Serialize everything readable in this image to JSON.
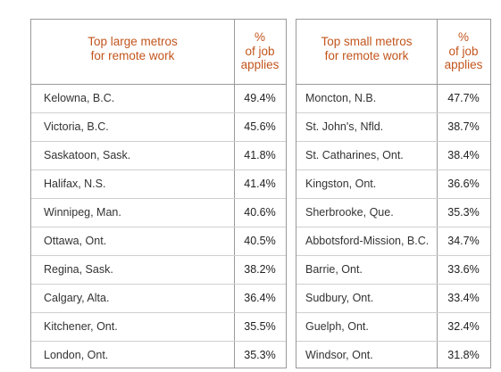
{
  "large": {
    "title": "Top large metros\nfor remote work",
    "pct_header": "%\nof job\napplies",
    "rows": [
      {
        "city": "Kelowna, B.C.",
        "value": "49.4%"
      },
      {
        "city": "Victoria, B.C.",
        "value": "45.6%"
      },
      {
        "city": "Saskatoon, Sask.",
        "value": "41.8%"
      },
      {
        "city": "Halifax, N.S.",
        "value": "41.4%"
      },
      {
        "city": "Winnipeg, Man.",
        "value": "40.6%"
      },
      {
        "city": "Ottawa, Ont.",
        "value": "40.5%"
      },
      {
        "city": "Regina, Sask.",
        "value": "38.2%"
      },
      {
        "city": "Calgary, Alta.",
        "value": "36.4%"
      },
      {
        "city": "Kitchener, Ont.",
        "value": "35.5%"
      },
      {
        "city": "London, Ont.",
        "value": "35.3%"
      }
    ]
  },
  "small": {
    "title": "Top small metros\nfor remote work",
    "pct_header": "%\nof job\napplies",
    "rows": [
      {
        "city": "Moncton, N.B.",
        "value": "47.7%"
      },
      {
        "city": "St. John's, Nfld.",
        "value": "38.7%"
      },
      {
        "city": "St. Catharines, Ont.",
        "value": "38.4%"
      },
      {
        "city": "Kingston, Ont.",
        "value": "36.6%"
      },
      {
        "city": "Sherbrooke, Que.",
        "value": "35.3%"
      },
      {
        "city": "Abbotsford-Mission, B.C.",
        "value": "34.7%"
      },
      {
        "city": "Barrie, Ont.",
        "value": "33.6%"
      },
      {
        "city": "Sudbury, Ont.",
        "value": "33.4%"
      },
      {
        "city": "Guelph, Ont.",
        "value": "32.4%"
      },
      {
        "city": "Windsor, Ont.",
        "value": "31.8%"
      }
    ]
  },
  "colors": {
    "header_text": "#c2551d",
    "border": "#9a9a9a",
    "row_divider": "#cfcfcf"
  }
}
